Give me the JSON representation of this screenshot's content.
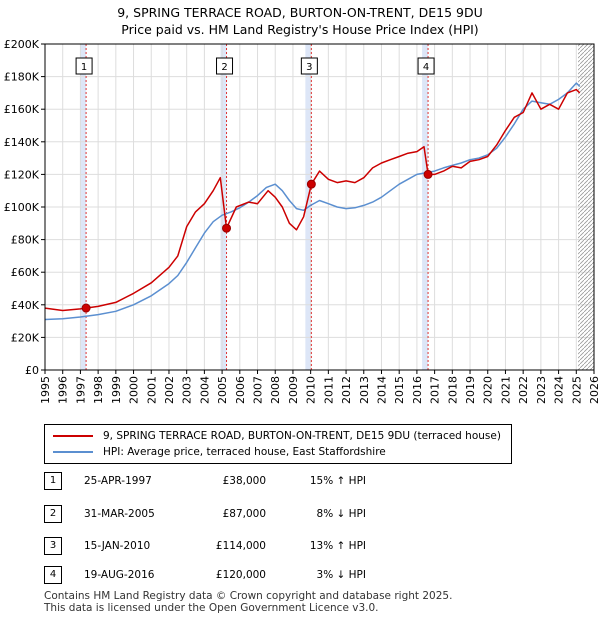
{
  "header": {
    "title_line1": "9, SPRING TERRACE ROAD, BURTON-ON-TRENT, DE15 9DU",
    "title_line2": "Price paid vs. HM Land Registry's House Price Index (HPI)"
  },
  "chart_data": {
    "type": "line",
    "title": "9, SPRING TERRACE ROAD, BURTON-ON-TRENT, DE15 9DU — Price paid vs. HM Land Registry's House Price Index (HPI)",
    "xlim": [
      1995,
      2026
    ],
    "ylim": [
      0,
      200000
    ],
    "y_ticks": [
      0,
      20000,
      40000,
      60000,
      80000,
      100000,
      120000,
      140000,
      160000,
      180000,
      200000
    ],
    "y_tick_labels": [
      "£0",
      "£20K",
      "£40K",
      "£60K",
      "£80K",
      "£100K",
      "£120K",
      "£140K",
      "£160K",
      "£180K",
      "£200K"
    ],
    "x_ticks": [
      1995,
      1996,
      1997,
      1998,
      1999,
      2000,
      2001,
      2002,
      2003,
      2004,
      2005,
      2006,
      2007,
      2008,
      2009,
      2010,
      2011,
      2012,
      2013,
      2014,
      2015,
      2016,
      2017,
      2018,
      2019,
      2020,
      2021,
      2022,
      2023,
      2024,
      2025,
      2026
    ],
    "grid": true,
    "colors": {
      "property": "#cc0000",
      "hpi": "#5b8fd0",
      "band": "#dde6f7",
      "sale_line": "#dd3333",
      "forecast_hatch": "#999999"
    },
    "forecast_start": 2025.1,
    "series": [
      {
        "name": "9, SPRING TERRACE ROAD, BURTON-ON-TRENT, DE15 9DU (terraced house)",
        "x": [
          1995.0,
          1996.0,
          1997.0,
          1997.3,
          1998.0,
          1999.0,
          2000.0,
          2001.0,
          2002.0,
          2002.5,
          2003.0,
          2003.5,
          2004.0,
          2004.5,
          2004.9,
          2005.25,
          2005.8,
          2006.5,
          2007.0,
          2007.6,
          2008.0,
          2008.4,
          2008.8,
          2009.2,
          2009.6,
          2010.04,
          2010.5,
          2011.0,
          2011.5,
          2012.0,
          2012.5,
          2013.0,
          2013.5,
          2014.0,
          2014.5,
          2015.0,
          2015.5,
          2016.0,
          2016.4,
          2016.63,
          2017.0,
          2017.5,
          2018.0,
          2018.5,
          2019.0,
          2019.5,
          2020.0,
          2020.5,
          2021.0,
          2021.5,
          2022.0,
          2022.5,
          2023.0,
          2023.5,
          2024.0,
          2024.5,
          2025.0,
          2025.2
        ],
        "values": [
          38000,
          36500,
          37500,
          38000,
          39000,
          41500,
          47000,
          53500,
          63000,
          70000,
          88000,
          97000,
          102000,
          110000,
          118000,
          87000,
          100000,
          103000,
          102000,
          110000,
          106000,
          100000,
          90000,
          86000,
          94000,
          114000,
          122000,
          117000,
          115000,
          116000,
          115000,
          118000,
          124000,
          127000,
          129000,
          131000,
          133000,
          134000,
          137000,
          120000,
          120000,
          122000,
          125000,
          124000,
          128000,
          129000,
          131000,
          138000,
          147000,
          155000,
          158000,
          170000,
          160000,
          163000,
          160000,
          170000,
          172000,
          170000
        ]
      },
      {
        "name": "HPI: Average price, terraced house, East Staffordshire",
        "x": [
          1995.0,
          1996.0,
          1997.0,
          1998.0,
          1999.0,
          2000.0,
          2001.0,
          2002.0,
          2002.5,
          2003.0,
          2003.5,
          2004.0,
          2004.5,
          2005.0,
          2005.5,
          2006.0,
          2006.5,
          2007.0,
          2007.5,
          2008.0,
          2008.4,
          2008.8,
          2009.2,
          2009.6,
          2010.0,
          2010.5,
          2011.0,
          2011.5,
          2012.0,
          2012.5,
          2013.0,
          2013.5,
          2014.0,
          2014.5,
          2015.0,
          2015.5,
          2016.0,
          2016.5,
          2017.0,
          2017.5,
          2018.0,
          2018.5,
          2019.0,
          2019.5,
          2020.0,
          2020.5,
          2021.0,
          2021.5,
          2022.0,
          2022.5,
          2023.0,
          2023.5,
          2024.0,
          2024.5,
          2025.0,
          2025.2
        ],
        "values": [
          31000,
          31500,
          32500,
          34000,
          36000,
          40000,
          45500,
          53000,
          58000,
          66000,
          75000,
          84000,
          91000,
          95000,
          97000,
          99500,
          103000,
          107000,
          112000,
          114000,
          110000,
          104000,
          99000,
          98000,
          101000,
          104000,
          102000,
          100000,
          99000,
          99500,
          101000,
          103000,
          106000,
          110000,
          114000,
          117000,
          120000,
          121000,
          122000,
          124000,
          125500,
          127000,
          129000,
          130000,
          132000,
          136000,
          143000,
          151000,
          160000,
          165000,
          164000,
          163000,
          166000,
          170000,
          176000,
          174000
        ]
      }
    ],
    "sales": [
      {
        "id": "1",
        "x": 1997.32,
        "value": 38000
      },
      {
        "id": "2",
        "x": 2005.25,
        "value": 87000
      },
      {
        "id": "3",
        "x": 2010.04,
        "value": 114000
      },
      {
        "id": "4",
        "x": 2016.63,
        "value": 120000
      }
    ]
  },
  "legend": {
    "property_label": "9, SPRING TERRACE ROAD, BURTON-ON-TRENT, DE15 9DU (terraced house)",
    "hpi_label": "HPI: Average price, terraced house, East Staffordshire"
  },
  "transactions": [
    {
      "id": "1",
      "date": "25-APR-1997",
      "price": "£38,000",
      "hpi": "15% ↑ HPI"
    },
    {
      "id": "2",
      "date": "31-MAR-2005",
      "price": "£87,000",
      "hpi": "8% ↓ HPI"
    },
    {
      "id": "3",
      "date": "15-JAN-2010",
      "price": "£114,000",
      "hpi": "13% ↑ HPI"
    },
    {
      "id": "4",
      "date": "19-AUG-2016",
      "price": "£120,000",
      "hpi": "3% ↓ HPI"
    }
  ],
  "footer": {
    "line1": "Contains HM Land Registry data © Crown copyright and database right 2025.",
    "line2": "This data is licensed under the Open Government Licence v3.0."
  }
}
